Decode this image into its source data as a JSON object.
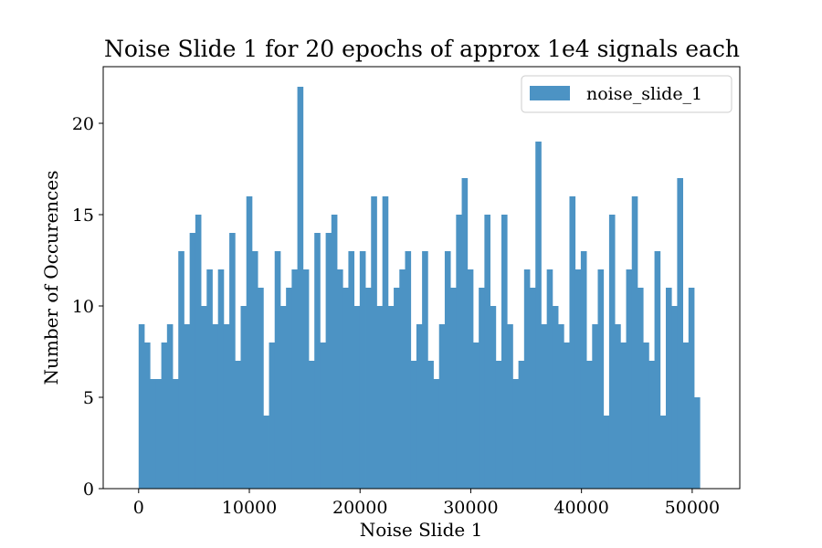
{
  "chart_data": {
    "type": "bar",
    "subtype": "histogram",
    "title": "Noise Slide 1 for 20 epochs of approx 1e4 signals each",
    "xlabel": "Noise Slide 1",
    "ylabel": "Number of Occurences",
    "xlim": [
      -3200,
      54300
    ],
    "ylim": [
      0,
      23.1
    ],
    "xticks": [
      0,
      10000,
      20000,
      30000,
      40000,
      50000
    ],
    "yticks": [
      0,
      5,
      10,
      15,
      20
    ],
    "legend": {
      "placement": "top-right",
      "label": "noise_slide_1"
    },
    "bar_color": "#4c93c4",
    "bin_start": 0,
    "bin_end": 51200,
    "bin_width": 512,
    "grid": false,
    "series": [
      {
        "name": "noise_slide_1",
        "values": [
          9,
          8,
          6,
          6,
          8,
          9,
          6,
          13,
          9,
          14,
          15,
          10,
          12,
          9,
          12,
          9,
          14,
          7,
          10,
          16,
          13,
          11,
          4,
          8,
          13,
          10,
          11,
          12,
          22,
          12,
          7,
          14,
          8,
          14,
          15,
          12,
          11,
          13,
          10,
          13,
          11,
          16,
          10,
          16,
          10,
          11,
          12,
          13,
          7,
          9,
          13,
          7,
          6,
          9,
          13,
          11,
          15,
          17,
          12,
          8,
          11,
          15,
          10,
          7,
          15,
          9,
          6,
          7,
          12,
          11,
          19,
          9,
          12,
          10,
          9,
          8,
          16,
          12,
          13,
          7,
          9,
          12,
          4,
          15,
          9,
          8,
          12,
          16,
          11,
          8,
          7,
          13,
          4,
          11,
          10,
          17,
          8,
          11,
          5,
          0
        ]
      }
    ]
  }
}
